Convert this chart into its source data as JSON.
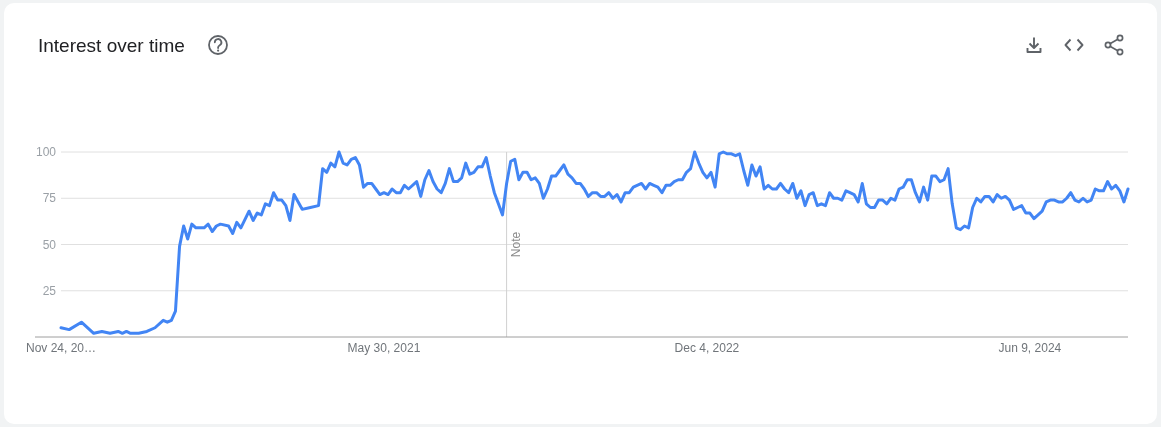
{
  "chart_data": {
    "type": "line",
    "title": "Interest over time",
    "x": [
      "2019-11-24",
      "2019-12-08",
      "2019-12-29",
      "2020-01-19",
      "2020-02-02",
      "2020-02-16",
      "2020-03-01",
      "2020-03-08",
      "2020-03-15",
      "2020-03-22",
      "2020-04-05",
      "2020-04-19",
      "2020-05-03",
      "2020-05-17",
      "2020-05-24",
      "2020-05-31",
      "2020-06-07",
      "2020-06-14",
      "2020-06-21",
      "2020-06-28",
      "2020-07-05",
      "2020-07-12",
      "2020-07-26",
      "2020-08-02",
      "2020-08-09",
      "2020-08-16",
      "2020-08-23",
      "2020-09-06",
      "2020-09-13",
      "2020-09-20",
      "2020-09-27",
      "2020-10-11",
      "2020-10-18",
      "2020-10-25",
      "2020-11-01",
      "2020-11-08",
      "2020-11-15",
      "2020-11-22",
      "2020-11-29",
      "2020-12-06",
      "2020-12-13",
      "2020-12-20",
      "2020-12-27",
      "2021-01-10",
      "2021-01-24",
      "2021-02-07",
      "2021-02-14",
      "2021-02-21",
      "2021-02-28",
      "2021-03-07",
      "2021-03-14",
      "2021-03-21",
      "2021-03-28",
      "2021-04-04",
      "2021-04-11",
      "2021-04-18",
      "2021-04-25",
      "2021-05-02",
      "2021-05-09",
      "2021-05-16",
      "2021-05-23",
      "2021-05-30",
      "2021-06-06",
      "2021-06-13",
      "2021-06-20",
      "2021-06-27",
      "2021-07-04",
      "2021-07-11",
      "2021-07-25",
      "2021-08-01",
      "2021-08-08",
      "2021-08-15",
      "2021-08-22",
      "2021-08-29",
      "2021-09-05",
      "2021-09-12",
      "2021-09-19",
      "2021-09-26",
      "2021-10-03",
      "2021-10-10",
      "2021-10-17",
      "2021-10-24",
      "2021-10-31",
      "2021-11-07",
      "2021-11-14",
      "2021-11-21",
      "2021-11-28",
      "2021-12-05",
      "2021-12-19",
      "2021-12-26",
      "2022-01-02",
      "2022-01-09",
      "2022-01-16",
      "2022-01-23",
      "2022-01-30",
      "2022-02-06",
      "2022-02-13",
      "2022-02-20",
      "2022-02-27",
      "2022-03-06",
      "2022-03-13",
      "2022-03-20",
      "2022-03-27",
      "2022-04-03",
      "2022-04-10",
      "2022-04-17",
      "2022-04-24",
      "2022-05-01",
      "2022-05-08",
      "2022-05-15",
      "2022-05-22",
      "2022-05-29",
      "2022-06-05",
      "2022-06-12",
      "2022-06-19",
      "2022-06-26",
      "2022-07-03",
      "2022-07-10",
      "2022-07-17",
      "2022-07-24",
      "2022-07-31",
      "2022-08-14",
      "2022-08-21",
      "2022-08-28",
      "2022-09-04",
      "2022-09-11",
      "2022-09-18",
      "2022-09-25",
      "2022-10-02",
      "2022-10-09",
      "2022-10-16",
      "2022-10-23",
      "2022-10-30",
      "2022-11-06",
      "2022-11-13",
      "2022-11-20",
      "2022-11-27",
      "2022-12-04",
      "2022-12-11",
      "2022-12-18",
      "2022-12-25",
      "2023-01-01",
      "2023-01-08",
      "2023-01-15",
      "2023-01-22",
      "2023-01-29",
      "2023-02-05",
      "2023-02-12",
      "2023-02-19",
      "2023-02-26",
      "2023-03-05",
      "2023-03-12",
      "2023-03-19",
      "2023-03-26",
      "2023-04-02",
      "2023-04-09",
      "2023-04-16",
      "2023-04-23",
      "2023-04-30",
      "2023-05-07",
      "2023-05-14",
      "2023-05-21",
      "2023-05-28",
      "2023-06-04",
      "2023-06-11",
      "2023-06-18",
      "2023-06-25",
      "2023-07-02",
      "2023-07-09",
      "2023-07-16",
      "2023-07-23",
      "2023-07-30",
      "2023-08-06",
      "2023-08-13",
      "2023-08-20",
      "2023-08-27",
      "2023-09-03",
      "2023-09-10",
      "2023-09-17",
      "2023-09-24",
      "2023-10-01",
      "2023-10-08",
      "2023-10-15",
      "2023-10-22",
      "2023-10-29",
      "2023-11-05",
      "2023-11-12",
      "2023-11-19",
      "2023-11-26",
      "2023-12-03",
      "2023-12-10",
      "2023-12-17",
      "2023-12-24",
      "2023-12-31",
      "2024-01-07",
      "2024-01-14",
      "2024-01-21",
      "2024-01-28",
      "2024-02-04",
      "2024-02-11",
      "2024-02-18",
      "2024-02-25",
      "2024-03-03",
      "2024-03-10",
      "2024-03-17",
      "2024-03-24",
      "2024-03-31",
      "2024-04-07",
      "2024-04-14",
      "2024-04-21",
      "2024-04-28",
      "2024-05-05",
      "2024-05-12",
      "2024-05-19",
      "2024-05-26",
      "2024-06-02",
      "2024-06-09",
      "2024-06-16",
      "2024-06-23",
      "2024-06-30",
      "2024-07-07",
      "2024-07-14",
      "2024-07-21",
      "2024-07-28",
      "2024-08-04",
      "2024-08-11",
      "2024-08-18",
      "2024-08-25",
      "2024-09-01",
      "2024-09-08",
      "2024-09-15",
      "2024-09-22",
      "2024-09-29",
      "2024-10-06",
      "2024-10-13",
      "2024-10-20",
      "2024-10-27",
      "2024-11-03",
      "2024-11-10",
      "2024-11-17",
      "2024-11-24"
    ],
    "series": [
      {
        "color": "#4285f4",
        "values": [
          5,
          4,
          8,
          2,
          3,
          2,
          3,
          2,
          3,
          2,
          2,
          3,
          5,
          9,
          8,
          9,
          14,
          49,
          60,
          53,
          61,
          59,
          59,
          61,
          57,
          60,
          61,
          60,
          56,
          62,
          59,
          68,
          63,
          67,
          66,
          72,
          71,
          78,
          74,
          74,
          71,
          63,
          77,
          69,
          70,
          71,
          91,
          89,
          94,
          92,
          100,
          94,
          93,
          96,
          97,
          93,
          81,
          83,
          83,
          80,
          77,
          78,
          77,
          80,
          78,
          78,
          82,
          80,
          84,
          76,
          85,
          90,
          84,
          80,
          78,
          83,
          91,
          84,
          84,
          86,
          94,
          88,
          89,
          92,
          92,
          97,
          87,
          78,
          66,
          83,
          95,
          96,
          85,
          89,
          89,
          85,
          86,
          83,
          75,
          80,
          87,
          87,
          90,
          93,
          88,
          86,
          83,
          83,
          80,
          76,
          78,
          78,
          76,
          76,
          78,
          75,
          77,
          73,
          78,
          78,
          81,
          83,
          80,
          83,
          82,
          81,
          78,
          82,
          82,
          84,
          85,
          85,
          89,
          91,
          100,
          94,
          89,
          86,
          89,
          81,
          99,
          100,
          99,
          99,
          98,
          99,
          90,
          82,
          93,
          87,
          92,
          80,
          82,
          80,
          80,
          83,
          80,
          78,
          83,
          75,
          79,
          71,
          77,
          78,
          71,
          72,
          71,
          78,
          75,
          75,
          74,
          79,
          78,
          77,
          73,
          83,
          72,
          70,
          70,
          74,
          74,
          72,
          75,
          74,
          80,
          81,
          85,
          85,
          78,
          73,
          81,
          74,
          87,
          87,
          84,
          85,
          91,
          72,
          59,
          58,
          60,
          59,
          70,
          75,
          73,
          76,
          76,
          73,
          77,
          75,
          76,
          74,
          69,
          70,
          71,
          67,
          67,
          64,
          66,
          68,
          73,
          74,
          74,
          73,
          73,
          75,
          78,
          74,
          73,
          75,
          73,
          74,
          80,
          79,
          79,
          84,
          80,
          82,
          79,
          73,
          80
        ]
      }
    ],
    "xlim": [
      "2019-11-24",
      "2024-11-24"
    ],
    "xticks": [
      {
        "value": "2019-11-24",
        "label": "Nov 24, 20…"
      },
      {
        "value": "2021-05-30",
        "label": "May 30, 2021"
      },
      {
        "value": "2022-12-04",
        "label": "Dec 4, 2022"
      },
      {
        "value": "2024-06-09",
        "label": "Jun 9, 2024"
      }
    ],
    "ylim": [
      0,
      100
    ],
    "yticks": [
      25,
      50,
      75,
      100
    ],
    "grid": "y",
    "ref_lines": [
      {
        "axis": "x",
        "value": "2021-12-26",
        "label": "Note"
      }
    ]
  }
}
